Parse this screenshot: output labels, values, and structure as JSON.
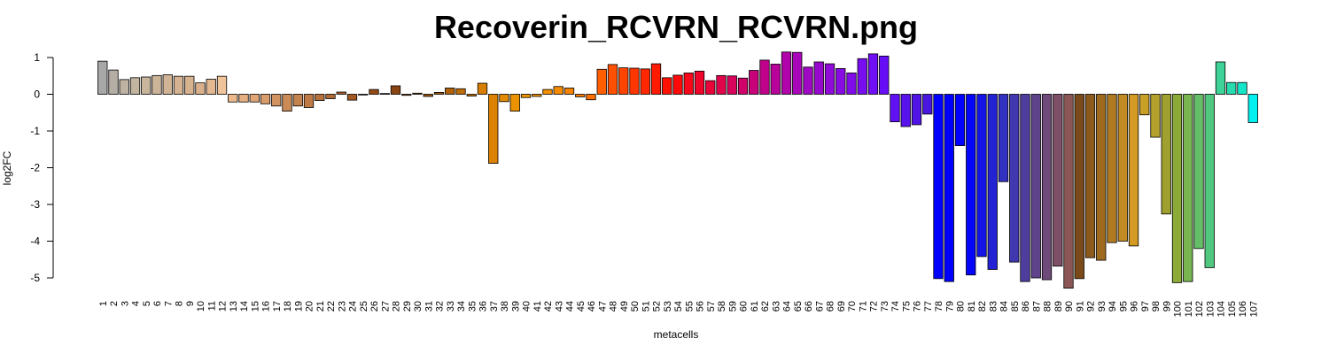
{
  "chart_data": {
    "type": "bar",
    "title": "Recoverin_RCVRN_RCVRN.png",
    "xlabel": "metacells",
    "ylabel": "log2FC",
    "ylim": [
      -5.2,
      1.15
    ],
    "yticks": [
      1,
      0,
      -1,
      -2,
      -3,
      -4,
      -5
    ],
    "grid": false,
    "categories": [
      "1",
      "2",
      "3",
      "4",
      "5",
      "6",
      "7",
      "8",
      "9",
      "10",
      "11",
      "12",
      "13",
      "14",
      "15",
      "16",
      "17",
      "18",
      "19",
      "20",
      "21",
      "22",
      "23",
      "24",
      "25",
      "26",
      "27",
      "28",
      "29",
      "30",
      "31",
      "32",
      "33",
      "34",
      "35",
      "36",
      "37",
      "38",
      "39",
      "40",
      "41",
      "42",
      "43",
      "44",
      "45",
      "46",
      "47",
      "48",
      "49",
      "50",
      "51",
      "52",
      "53",
      "54",
      "55",
      "56",
      "57",
      "58",
      "59",
      "60",
      "61",
      "62",
      "63",
      "64",
      "65",
      "66",
      "67",
      "68",
      "69",
      "70",
      "71",
      "72",
      "73",
      "74",
      "75",
      "76",
      "77",
      "78",
      "79",
      "80",
      "81",
      "82",
      "83",
      "84",
      "85",
      "86",
      "87",
      "88",
      "89",
      "90",
      "91",
      "92",
      "93",
      "94",
      "95",
      "96",
      "97",
      "98",
      "99",
      "100",
      "101",
      "102",
      "103",
      "104",
      "105",
      "106",
      "107"
    ],
    "values": [
      0.9,
      0.66,
      0.4,
      0.45,
      0.47,
      0.51,
      0.53,
      0.49,
      0.49,
      0.31,
      0.41,
      0.49,
      -0.21,
      -0.21,
      -0.21,
      -0.26,
      -0.32,
      -0.46,
      -0.32,
      -0.36,
      -0.17,
      -0.12,
      0.06,
      -0.16,
      -0.02,
      0.13,
      0.02,
      0.23,
      -0.03,
      0.03,
      -0.06,
      0.05,
      0.17,
      0.15,
      -0.05,
      0.3,
      -1.88,
      -0.2,
      -0.46,
      -0.09,
      -0.06,
      0.13,
      0.21,
      0.17,
      -0.07,
      -0.15,
      0.68,
      0.81,
      0.72,
      0.71,
      0.69,
      0.83,
      0.45,
      0.52,
      0.58,
      0.63,
      0.37,
      0.51,
      0.5,
      0.44,
      0.65,
      0.93,
      0.82,
      1.15,
      1.14,
      0.74,
      0.88,
      0.83,
      0.7,
      0.58,
      0.97,
      1.1,
      1.04,
      -0.75,
      -0.88,
      -0.83,
      -0.54,
      -5.02,
      -5.1,
      -1.4,
      -4.92,
      -4.42,
      -4.77,
      -2.38,
      -4.57,
      -5.1,
      -5.0,
      -5.05,
      -4.68,
      -5.28,
      -5.02,
      -4.45,
      -4.52,
      -4.04,
      -4.0,
      -4.13,
      -0.56,
      -1.17,
      -3.26,
      -5.13,
      -5.1,
      -4.2,
      -4.72,
      0.88,
      0.32,
      0.32,
      -0.77
    ],
    "colors": [
      "#A8A8A8",
      "#B5AEA5",
      "#BEB3A2",
      "#C2B59F",
      "#C7B59C",
      "#CCB499",
      "#D1B395",
      "#D4B292",
      "#D7B28F",
      "#DAB18C",
      "#E3B891",
      "#F0C49A",
      "#EDB98C",
      "#E6AF80",
      "#DFA575",
      "#D99C6B",
      "#D29361",
      "#CB8B57",
      "#C4824E",
      "#BE7A45",
      "#B7713C",
      "#B06934",
      "#A9612C",
      "#A25924",
      "#9B511D",
      "#944A17",
      "#8B4513",
      "#8B4513",
      "#8B4513",
      "#8F4A10",
      "#9A520E",
      "#A65B0C",
      "#B2640A",
      "#BE6D08",
      "#CA7606",
      "#D67F04",
      "#DB8300",
      "#E28B00",
      "#EA9200",
      "#EE9500",
      "#F19400",
      "#F39100",
      "#F58B00",
      "#F78400",
      "#F97A00",
      "#FB6E00",
      "#FF5F00",
      "#FF5100",
      "#FF4300",
      "#FF3600",
      "#FF2800",
      "#FF1A00",
      "#FF1000",
      "#FF0A0A",
      "#F8081A",
      "#F0062A",
      "#E8053A",
      "#E0044A",
      "#D8035A",
      "#D0026A",
      "#C8027A",
      "#C0028A",
      "#B8039A",
      "#B004AA",
      "#A806B8",
      "#A008C4",
      "#9809CE",
      "#900AD8",
      "#880BE2",
      "#800CEA",
      "#780DF0",
      "#700EF4",
      "#680EF6",
      "#6010F2",
      "#5812EC",
      "#5014E6",
      "#4816DE",
      "#0000FF",
      "#0000FF",
      "#0000FF",
      "#0505F8",
      "#1414E6",
      "#2323D4",
      "#3232C2",
      "#4138B0",
      "#503E9E",
      "#5F448C",
      "#6E4A7A",
      "#7D5068",
      "#8C5656",
      "#7A4A1A",
      "#8C5A1C",
      "#9E6A1E",
      "#B07A20",
      "#C28A22",
      "#D49A24",
      "#C8A028",
      "#B4A02C",
      "#A0A030",
      "#8CAA38",
      "#78B450",
      "#64BE68",
      "#50C880",
      "#3CD298",
      "#28DCB0",
      "#14E6C8",
      "#00F0F0"
    ]
  }
}
